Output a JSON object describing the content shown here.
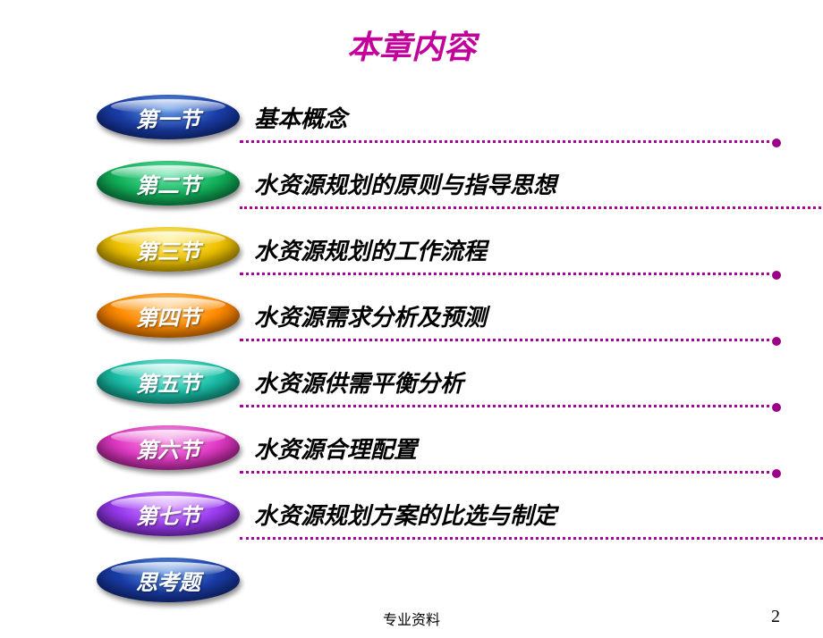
{
  "title": {
    "text": "本章内容",
    "color": "#c2009a"
  },
  "sections": [
    {
      "pill": "第一节",
      "text": "基本概念",
      "pill_gradient": [
        "#6aa0e8",
        "#1a3da8",
        "#0a1e66"
      ],
      "line_width": 600
    },
    {
      "pill": "第二节",
      "text": "水资源规划的原则与指导思想",
      "pill_gradient": [
        "#6fe6b1",
        "#12b35b",
        "#065e2e"
      ],
      "line_width": 680
    },
    {
      "pill": "第三节",
      "text": "水资源规划的工作流程",
      "pill_gradient": [
        "#fff08a",
        "#f0c400",
        "#8a6e00"
      ],
      "line_width": 600
    },
    {
      "pill": "第四节",
      "text": "水资源需求分析及预测",
      "pill_gradient": [
        "#ffcf8a",
        "#ff8c00",
        "#a04800"
      ],
      "line_width": 600
    },
    {
      "pill": "第五节",
      "text": "水资源供需平衡分析",
      "pill_gradient": [
        "#9fefe6",
        "#1abfa8",
        "#0a6b5d"
      ],
      "line_width": 600
    },
    {
      "pill": "第六节",
      "text": "水资源合理配置",
      "pill_gradient": [
        "#f6a0e6",
        "#e23bc6",
        "#7d1268"
      ],
      "line_width": 600
    },
    {
      "pill": "第七节",
      "text": "水资源规划方案的比选与制定",
      "pill_gradient": [
        "#d9a0ff",
        "#9b3bf0",
        "#4a1580"
      ],
      "line_width": 694
    }
  ],
  "last": {
    "pill": "思考题",
    "pill_gradient": [
      "#6aa0e8",
      "#1a3da8",
      "#0a1e66"
    ]
  },
  "dotted": {
    "color": "#a8009a",
    "dot_color": "#9c0088"
  },
  "footer": "专业资料",
  "page": "2"
}
